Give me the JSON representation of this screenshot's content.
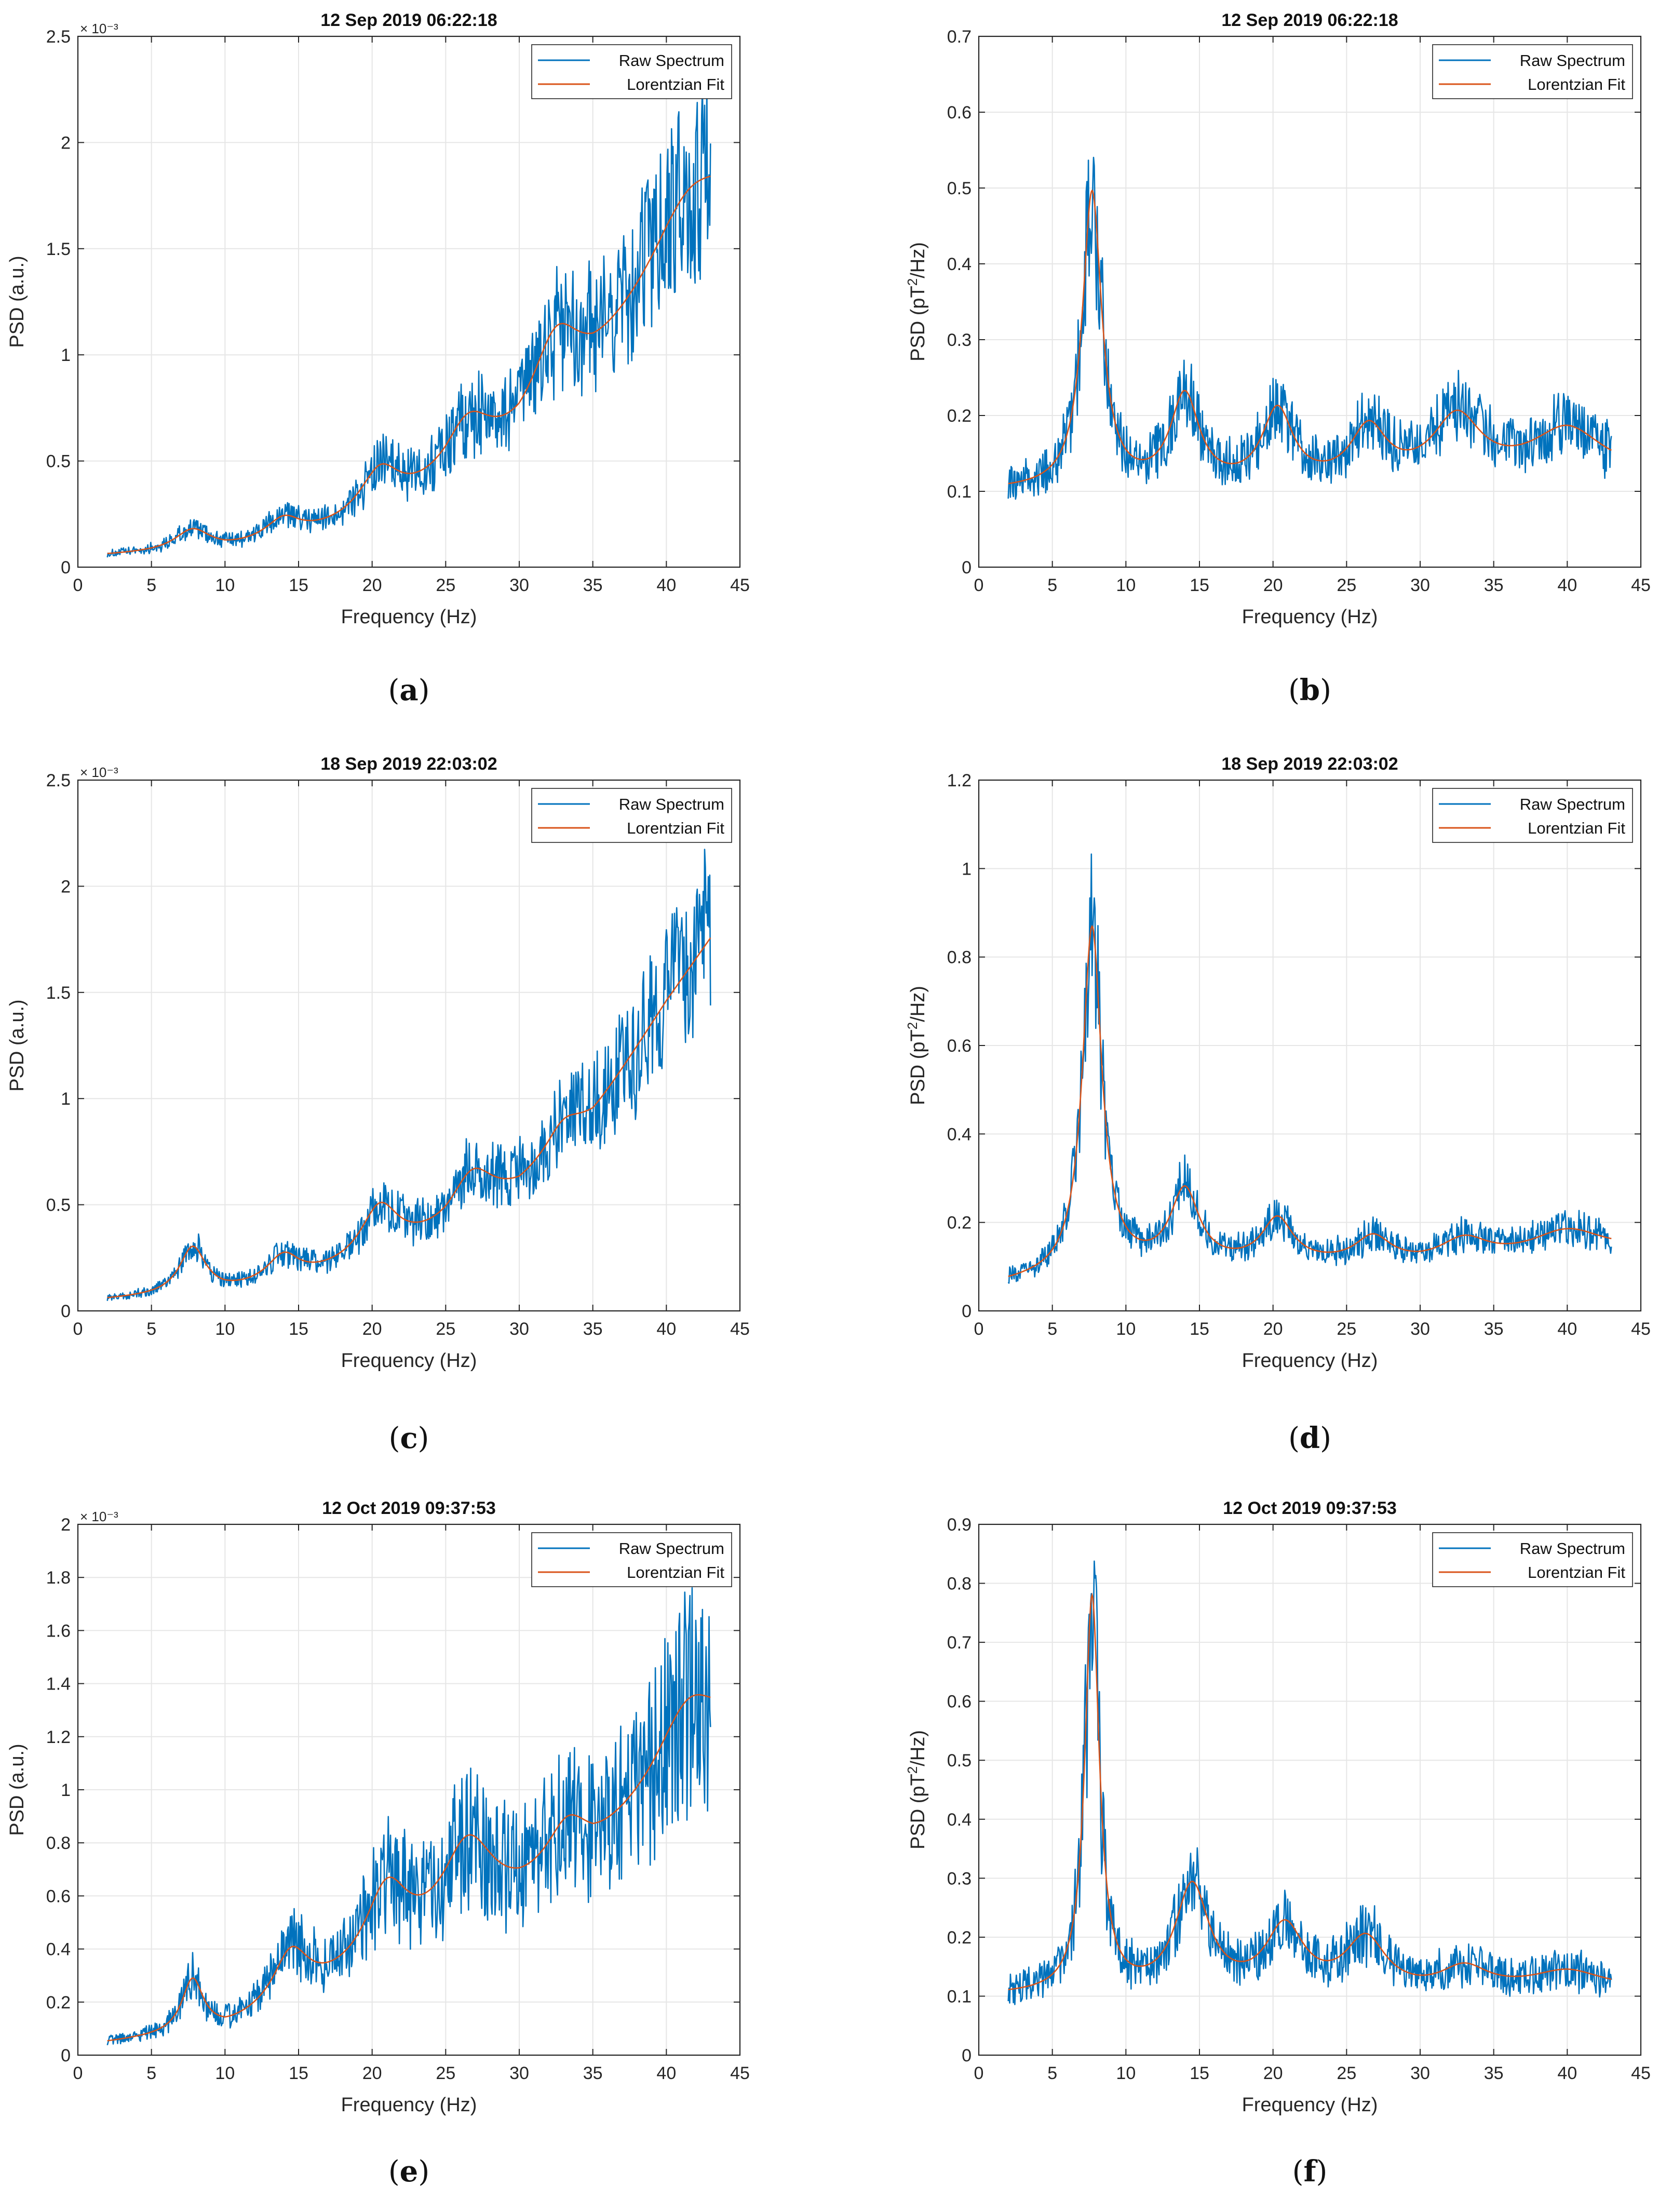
{
  "chart_data": [
    {
      "id": "a",
      "type": "line",
      "title": "12 Sep 2019 06:22:18",
      "xlabel": "Frequency (Hz)",
      "ylabel": "PSD (a.u.)",
      "ylabel_parts": [
        "PSD (a.u.)"
      ],
      "y_exponent": "× 10⁻³",
      "xlim": [
        0,
        45
      ],
      "ylim": [
        0,
        2.5
      ],
      "xticks": [
        0,
        5,
        10,
        15,
        20,
        25,
        30,
        35,
        40,
        45
      ],
      "xtick_labels": [
        "0",
        "5",
        "10",
        "15",
        "20",
        "25",
        "30",
        "35",
        "40",
        "45"
      ],
      "yticks": [
        0,
        0.5,
        1,
        1.5,
        2,
        2.5
      ],
      "ytick_labels": [
        "0",
        "0.5",
        "1",
        "1.5",
        "2",
        "2.5"
      ],
      "legend": [
        "Raw Spectrum",
        "Lorentzian Fit"
      ],
      "caption": "a",
      "fit": {
        "baseline": [
          [
            2,
            0.05
          ],
          [
            10,
            0.07
          ],
          [
            15,
            0.12
          ],
          [
            20,
            0.2
          ],
          [
            25,
            0.35
          ],
          [
            30,
            0.55
          ],
          [
            35,
            0.9
          ],
          [
            40,
            1.35
          ],
          [
            43,
            1.6
          ]
        ],
        "peaks": [
          [
            7.8,
            0.1,
            1.5
          ],
          [
            14,
            0.1,
            1.5
          ],
          [
            20.5,
            0.22,
            1.7
          ],
          [
            26.5,
            0.25,
            2
          ],
          [
            32.5,
            0.35,
            2
          ],
          [
            41.5,
            0.28,
            3
          ]
        ]
      },
      "raw_noise": 0.12,
      "series": [
        {
          "name": "Raw Spectrum",
          "color": "#0072BD"
        },
        {
          "name": "Lorentzian Fit",
          "color": "#D95319"
        }
      ]
    },
    {
      "id": "b",
      "type": "line",
      "title": "12 Sep 2019 06:22:18",
      "xlabel": "Frequency (Hz)",
      "ylabel": "PSD (pT²/Hz)",
      "ylabel_parts": [
        "PSD (pT",
        "2",
        "/Hz)"
      ],
      "y_exponent": "",
      "xlim": [
        0,
        45
      ],
      "ylim": [
        0,
        0.7
      ],
      "xticks": [
        0,
        5,
        10,
        15,
        20,
        25,
        30,
        35,
        40,
        45
      ],
      "xtick_labels": [
        "0",
        "5",
        "10",
        "15",
        "20",
        "25",
        "30",
        "35",
        "40",
        "45"
      ],
      "yticks": [
        0,
        0.1,
        0.2,
        0.3,
        0.4,
        0.5,
        0.6,
        0.7
      ],
      "ytick_labels": [
        "0",
        "0.1",
        "0.2",
        "0.3",
        "0.4",
        "0.5",
        "0.6",
        "0.7"
      ],
      "legend": [
        "Raw Spectrum",
        "Lorentzian Fit"
      ],
      "caption": "b",
      "fit": {
        "baseline": [
          [
            2,
            0.1
          ],
          [
            10,
            0.1
          ],
          [
            20,
            0.1
          ],
          [
            30,
            0.11
          ],
          [
            40,
            0.12
          ],
          [
            43,
            0.12
          ]
        ],
        "peaks": [
          [
            7.7,
            0.39,
            0.8
          ],
          [
            14,
            0.12,
            1.2
          ],
          [
            20.3,
            0.1,
            1.3
          ],
          [
            26.5,
            0.07,
            1.5
          ],
          [
            32.5,
            0.08,
            2
          ],
          [
            40,
            0.06,
            3
          ]
        ]
      },
      "raw_noise": 0.1,
      "series": [
        {
          "name": "Raw Spectrum",
          "color": "#0072BD"
        },
        {
          "name": "Lorentzian Fit",
          "color": "#D95319"
        }
      ]
    },
    {
      "id": "c",
      "type": "line",
      "title": "18 Sep 2019 22:03:02",
      "xlabel": "Frequency (Hz)",
      "ylabel": "PSD (a.u.)",
      "ylabel_parts": [
        "PSD (a.u.)"
      ],
      "y_exponent": "× 10⁻³",
      "xlim": [
        0,
        45
      ],
      "ylim": [
        0,
        2.5
      ],
      "xticks": [
        0,
        5,
        10,
        15,
        20,
        25,
        30,
        35,
        40,
        45
      ],
      "xtick_labels": [
        "0",
        "5",
        "10",
        "15",
        "20",
        "25",
        "30",
        "35",
        "40",
        "45"
      ],
      "yticks": [
        0,
        0.5,
        1,
        1.5,
        2,
        2.5
      ],
      "ytick_labels": [
        "0",
        "0.5",
        "1",
        "1.5",
        "2",
        "2.5"
      ],
      "legend": [
        "Raw Spectrum",
        "Lorentzian Fit"
      ],
      "caption": "c",
      "fit": {
        "baseline": [
          [
            2,
            0.05
          ],
          [
            10,
            0.08
          ],
          [
            15,
            0.13
          ],
          [
            20,
            0.22
          ],
          [
            25,
            0.35
          ],
          [
            30,
            0.55
          ],
          [
            35,
            0.9
          ],
          [
            40,
            1.45
          ],
          [
            43,
            1.75
          ]
        ],
        "peaks": [
          [
            7.8,
            0.22,
            1.1
          ],
          [
            14,
            0.13,
            1.4
          ],
          [
            20.5,
            0.25,
            1.6
          ],
          [
            26.8,
            0.22,
            1.8
          ],
          [
            33,
            0.12,
            1.5
          ]
        ]
      },
      "raw_noise": 0.11,
      "series": [
        {
          "name": "Raw Spectrum",
          "color": "#0072BD"
        },
        {
          "name": "Lorentzian Fit",
          "color": "#D95319"
        }
      ]
    },
    {
      "id": "d",
      "type": "line",
      "title": "18 Sep 2019 22:03:02",
      "xlabel": "Frequency (Hz)",
      "ylabel": "PSD (pT²/Hz)",
      "ylabel_parts": [
        "PSD (pT",
        "2",
        "/Hz)"
      ],
      "y_exponent": "",
      "xlim": [
        0,
        45
      ],
      "ylim": [
        0,
        1.2
      ],
      "xticks": [
        0,
        5,
        10,
        15,
        20,
        25,
        30,
        35,
        40,
        45
      ],
      "xtick_labels": [
        "0",
        "5",
        "10",
        "15",
        "20",
        "25",
        "30",
        "35",
        "40",
        "45"
      ],
      "yticks": [
        0,
        0.2,
        0.4,
        0.6,
        0.8,
        1,
        1.2
      ],
      "ytick_labels": [
        "0",
        "0.2",
        "0.4",
        "0.6",
        "0.8",
        "1",
        "1.2"
      ],
      "legend": [
        "Raw Spectrum",
        "Lorentzian Fit"
      ],
      "caption": "d",
      "fit": {
        "baseline": [
          [
            2,
            0.06
          ],
          [
            10,
            0.09
          ],
          [
            20,
            0.1
          ],
          [
            30,
            0.1
          ],
          [
            40,
            0.12
          ],
          [
            43,
            0.13
          ]
        ],
        "peaks": [
          [
            7.7,
            0.78,
            0.8
          ],
          [
            14,
            0.17,
            1.2
          ],
          [
            20.3,
            0.1,
            1.3
          ],
          [
            26.8,
            0.06,
            1.5
          ],
          [
            33,
            0.05,
            2
          ],
          [
            40,
            0.06,
            3
          ]
        ]
      },
      "raw_noise": 0.1,
      "series": [
        {
          "name": "Raw Spectrum",
          "color": "#0072BD"
        },
        {
          "name": "Lorentzian Fit",
          "color": "#D95319"
        }
      ]
    },
    {
      "id": "e",
      "type": "line",
      "title": "12 Oct 2019 09:37:53",
      "xlabel": "Frequency (Hz)",
      "ylabel": "PSD (a.u.)",
      "ylabel_parts": [
        "PSD (a.u.)"
      ],
      "y_exponent": "× 10⁻³",
      "xlim": [
        0,
        45
      ],
      "ylim": [
        0,
        2
      ],
      "xticks": [
        0,
        5,
        10,
        15,
        20,
        25,
        30,
        35,
        40,
        45
      ],
      "xtick_labels": [
        "0",
        "5",
        "10",
        "15",
        "20",
        "25",
        "30",
        "35",
        "40",
        "45"
      ],
      "yticks": [
        0,
        0.2,
        0.4,
        0.6,
        0.8,
        1,
        1.2,
        1.4,
        1.6,
        1.8,
        2
      ],
      "ytick_labels": [
        "0",
        "0.2",
        "0.4",
        "0.6",
        "0.8",
        "1",
        "1.2",
        "1.4",
        "1.6",
        "1.8",
        "2"
      ],
      "legend": [
        "Raw Spectrum",
        "Lorentzian Fit"
      ],
      "caption": "e",
      "fit": {
        "baseline": [
          [
            2,
            0.04
          ],
          [
            10,
            0.08
          ],
          [
            15,
            0.18
          ],
          [
            20,
            0.3
          ],
          [
            25,
            0.42
          ],
          [
            30,
            0.55
          ],
          [
            35,
            0.72
          ],
          [
            40,
            1.0
          ],
          [
            43,
            1.15
          ]
        ],
        "peaks": [
          [
            7.8,
            0.2,
            0.9
          ],
          [
            14.5,
            0.2,
            1.5
          ],
          [
            21,
            0.28,
            1.8
          ],
          [
            26.5,
            0.32,
            2.2
          ],
          [
            33.3,
            0.18,
            1.8
          ],
          [
            41.5,
            0.25,
            2.5
          ]
        ]
      },
      "raw_noise": 0.14,
      "series": [
        {
          "name": "Raw Spectrum",
          "color": "#0072BD"
        },
        {
          "name": "Lorentzian Fit",
          "color": "#D95319"
        }
      ]
    },
    {
      "id": "f",
      "type": "line",
      "title": "12 Oct 2019 09:37:53",
      "xlabel": "Frequency (Hz)",
      "ylabel": "PSD (pT²/Hz)",
      "ylabel_parts": [
        "PSD (pT",
        "2",
        "/Hz)"
      ],
      "y_exponent": "",
      "xlim": [
        0,
        45
      ],
      "ylim": [
        0,
        0.9
      ],
      "xticks": [
        0,
        5,
        10,
        15,
        20,
        25,
        30,
        35,
        40,
        45
      ],
      "xtick_labels": [
        "0",
        "5",
        "10",
        "15",
        "20",
        "25",
        "30",
        "35",
        "40",
        "45"
      ],
      "yticks": [
        0,
        0.1,
        0.2,
        0.3,
        0.4,
        0.5,
        0.6,
        0.7,
        0.8,
        0.9
      ],
      "ytick_labels": [
        "0",
        "0.1",
        "0.2",
        "0.3",
        "0.4",
        "0.5",
        "0.6",
        "0.7",
        "0.8",
        "0.9"
      ],
      "legend": [
        "Raw Spectrum",
        "Lorentzian Fit"
      ],
      "caption": "f",
      "fit": {
        "baseline": [
          [
            2,
            0.1
          ],
          [
            10,
            0.1
          ],
          [
            20,
            0.1
          ],
          [
            30,
            0.1
          ],
          [
            40,
            0.11
          ],
          [
            43,
            0.11
          ]
        ],
        "peaks": [
          [
            7.7,
            0.67,
            0.6
          ],
          [
            14.5,
            0.18,
            1.4
          ],
          [
            20.8,
            0.11,
            1.6
          ],
          [
            26.3,
            0.09,
            1.7
          ],
          [
            33,
            0.04,
            2
          ],
          [
            40,
            0.03,
            3
          ]
        ]
      },
      "raw_noise": 0.11,
      "series": [
        {
          "name": "Raw Spectrum",
          "color": "#0072BD"
        },
        {
          "name": "Lorentzian Fit",
          "color": "#D95319"
        }
      ]
    }
  ],
  "colors": {
    "raw": "#0072BD",
    "fit": "#D95319",
    "grid": "#e6e6e6",
    "axis": "#262626"
  }
}
